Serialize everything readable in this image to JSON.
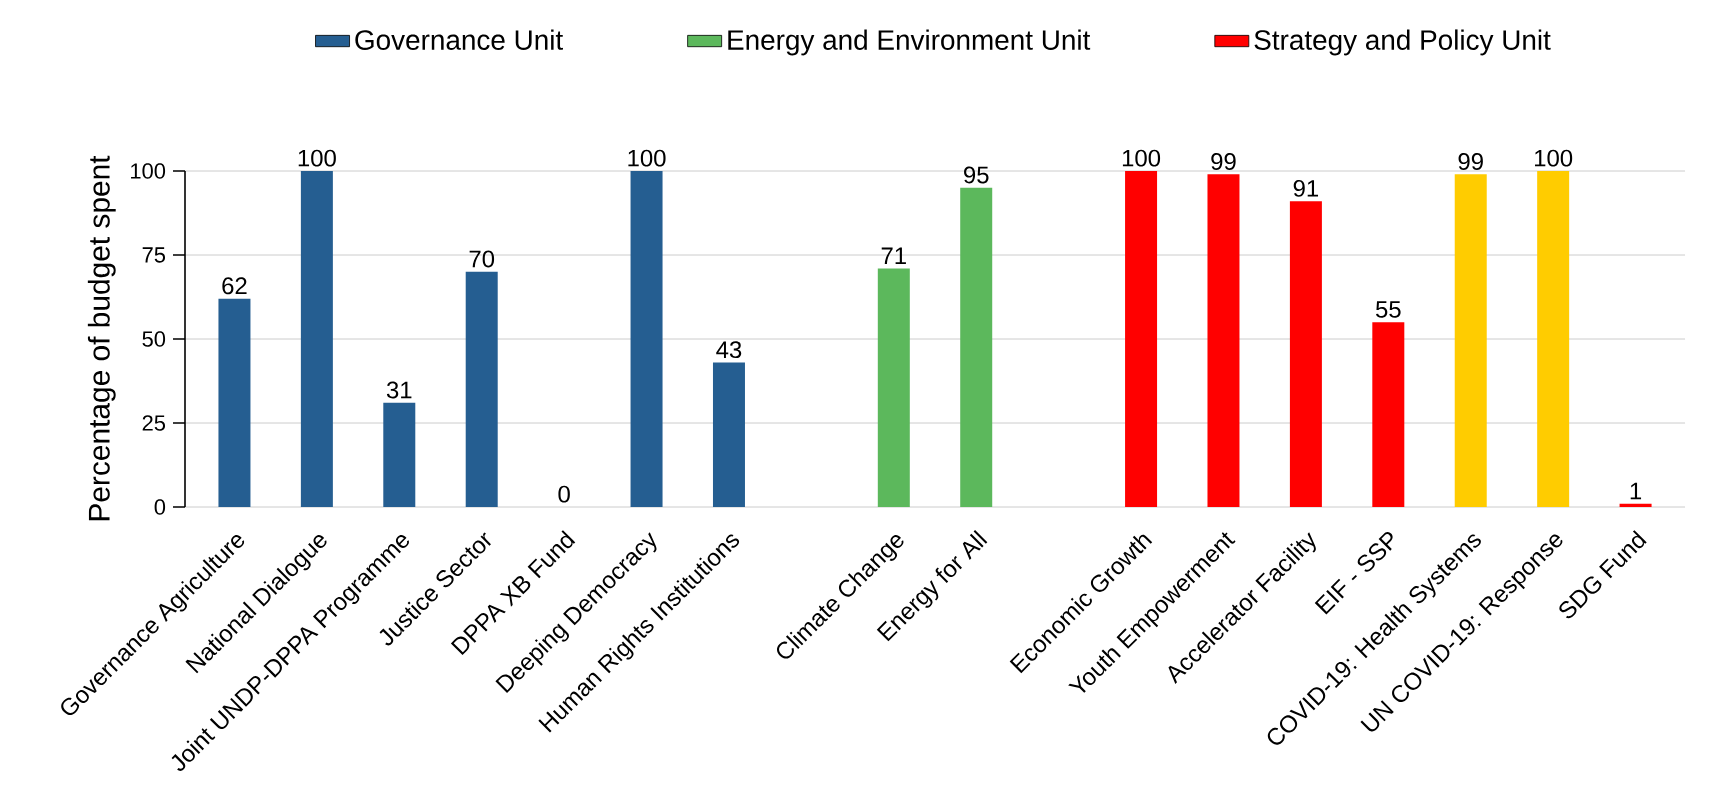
{
  "chart_data": {
    "type": "bar",
    "ylabel": "Percentage of budget spent",
    "categories": [
      "Governance Agriculture",
      "National Dialogue",
      "Joint UNDP-DPPA Programme",
      "Justice Sector",
      "DPPA XB Fund",
      "Deeping Democracy",
      "Human Rights Institutions",
      null,
      "Climate Change",
      "Energy for All",
      null,
      "Economic Growth",
      "Youth Empowerment",
      "Accelerator Facility",
      "EIF - SSP",
      "COVID-19: Health Systems",
      "UN COVID-19: Response",
      "SDG Fund"
    ],
    "series": [
      {
        "name": "Governance Unit",
        "color": "#255e91",
        "values": [
          62,
          100,
          31,
          70,
          0,
          100,
          43,
          null,
          null,
          null,
          null,
          null,
          null,
          null,
          null,
          null,
          null,
          null
        ]
      },
      {
        "name": "Energy and Environment Unit",
        "color": "#5cb85c",
        "values": [
          null,
          null,
          null,
          null,
          null,
          null,
          null,
          null,
          71,
          95,
          null,
          null,
          null,
          null,
          null,
          null,
          null,
          null
        ]
      },
      {
        "name": "Strategy and Policy Unit",
        "color": "#ff0000",
        "colors": [
          null,
          null,
          null,
          null,
          null,
          null,
          null,
          null,
          null,
          null,
          null,
          null,
          null,
          null,
          null,
          "#ffcc00",
          "#ffcc00",
          null
        ],
        "values": [
          null,
          null,
          null,
          null,
          null,
          null,
          null,
          null,
          null,
          null,
          null,
          100,
          99,
          91,
          55,
          99,
          100,
          1
        ]
      }
    ],
    "ylim": [
      0,
      100
    ],
    "yticks": [
      0,
      25,
      50,
      75,
      100
    ],
    "grid": "y",
    "legend": "top",
    "data_labels": true
  }
}
